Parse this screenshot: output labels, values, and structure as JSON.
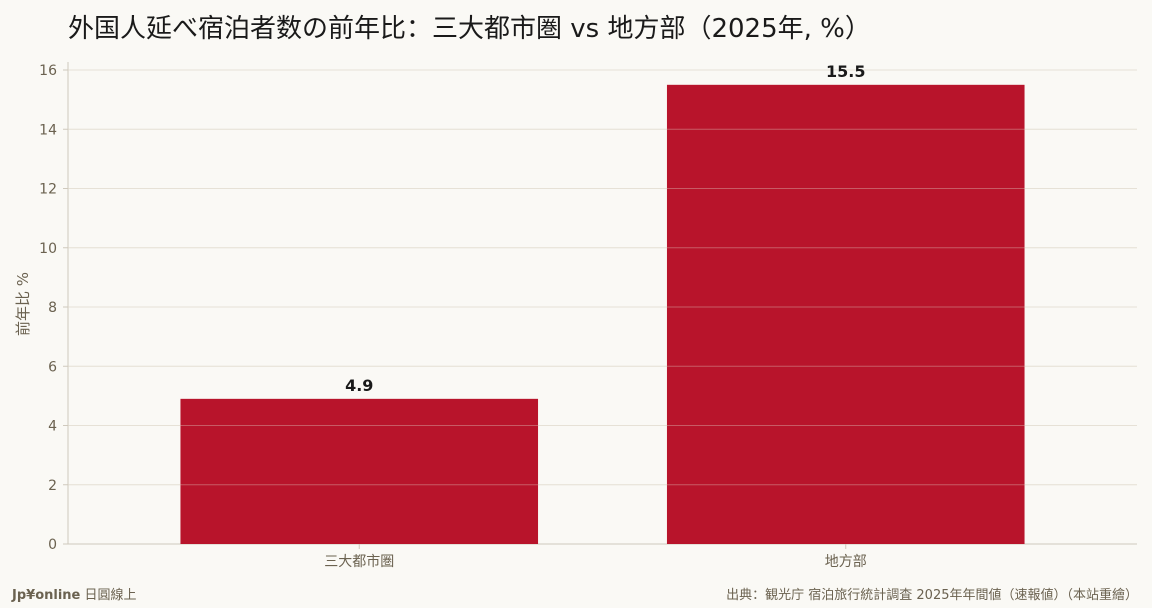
{
  "chart_data": {
    "type": "bar",
    "title": "外国人延べ宿泊者数の前年比：三大都市圏 vs 地方部（2025年, %）",
    "categories": [
      "三大都市圏",
      "地方部"
    ],
    "values": [
      4.9,
      15.5
    ],
    "value_labels": [
      "4.9",
      "15.5"
    ],
    "xlabel": "",
    "ylabel": "前年比 %",
    "ylim": [
      0,
      16
    ],
    "yticks": [
      "0",
      "2",
      "4",
      "6",
      "8",
      "10",
      "12",
      "14",
      "16"
    ],
    "grid": true,
    "legend": "none",
    "bar_color": "#b8142b"
  },
  "footer": {
    "brand": "Jp¥online",
    "brand_suffix": " 日圓線上",
    "source": "出典：観光庁 宿泊旅行統計調査 2025年年間値（速報値）（本站重繪）"
  },
  "colors": {
    "background": "#faf9f5",
    "grid": "#e6e2da",
    "axis": "#cfc9bd",
    "bar": "#b8142b"
  }
}
